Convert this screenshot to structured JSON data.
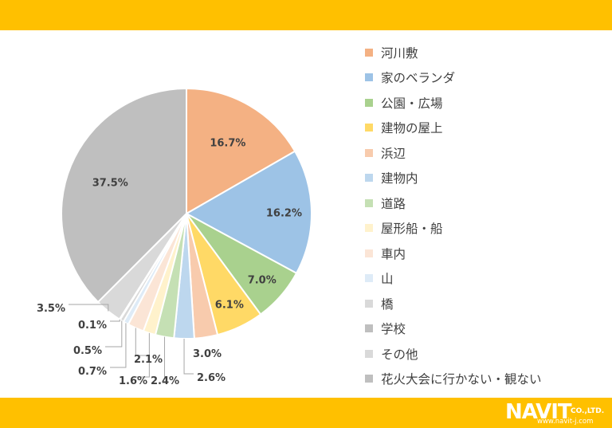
{
  "chart_data": {
    "type": "pie",
    "start_angle": "12 o'clock",
    "direction": "clockwise",
    "categories": [
      "河川敷",
      "家のベランダ",
      "公園・広場",
      "建物の屋上",
      "浜辺",
      "建物内",
      "道路",
      "屋形船・船",
      "車内",
      "山",
      "橋",
      "学校",
      "その他",
      "花火大会に行かない・観ない"
    ],
    "values": [
      16.7,
      16.2,
      7.0,
      6.1,
      3.0,
      2.6,
      2.4,
      1.6,
      2.1,
      0.7,
      0.5,
      0.1,
      3.5,
      37.5
    ],
    "data_labels": [
      "16.7%",
      "16.2%",
      "7.0%",
      "6.1%",
      "3.0%",
      "2.6%",
      "2.4%",
      "1.6%",
      "2.1%",
      "0.7%",
      "0.5%",
      "0.1%",
      "3.5%",
      "37.5%"
    ],
    "colors": [
      "#f4b183",
      "#9dc3e6",
      "#a9d18e",
      "#ffd966",
      "#f8cbad",
      "#bdd7ee",
      "#c5e0b4",
      "#fff2cc",
      "#fbe5d6",
      "#deebf7",
      "#d9d9d9",
      "#bfbfbf",
      "#d9d9d9",
      "#bfbfbf"
    ],
    "legend_position": "right"
  },
  "logo": {
    "brand": "NAVIT",
    "suffix": "CO.,LTD.",
    "url": "www.navit-j.com"
  },
  "colors": {
    "band": "#ffc000",
    "text": "#404040"
  }
}
